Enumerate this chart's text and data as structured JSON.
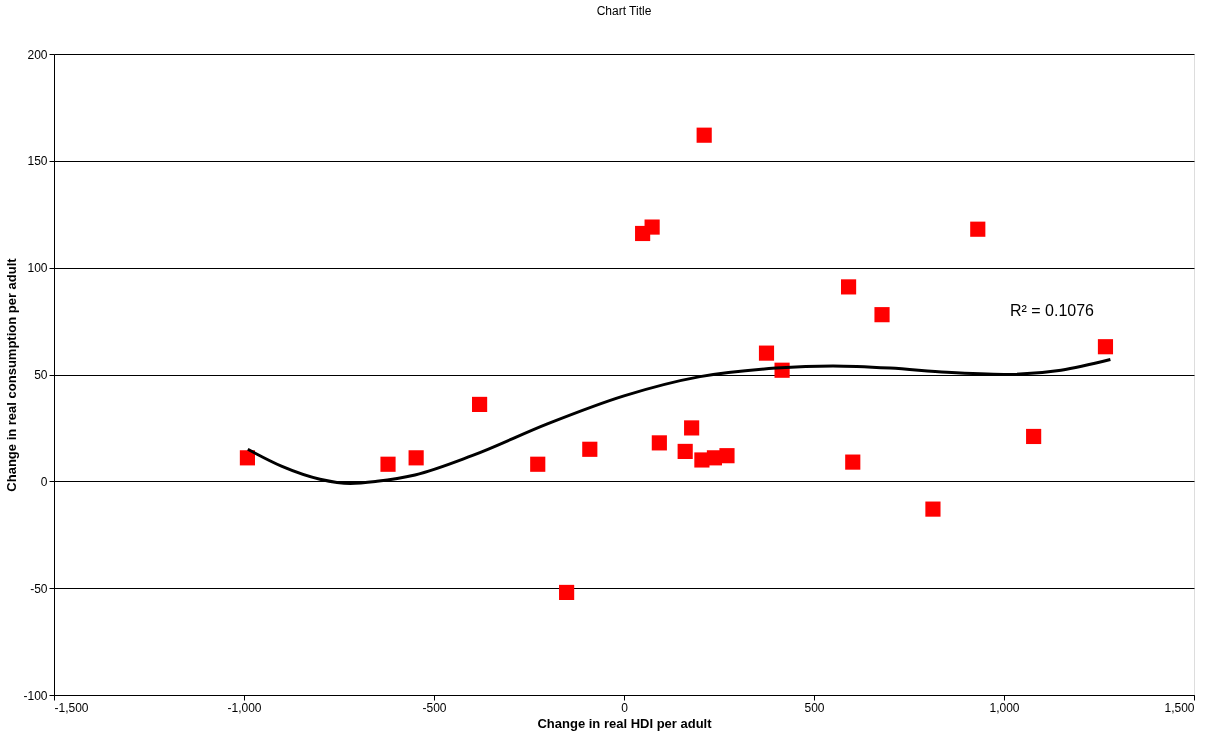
{
  "chart_data": {
    "type": "scatter",
    "title": "Chart Title",
    "xlabel": "Change in real HDI per adult",
    "ylabel": "Change in real consumption per adult",
    "x": [
      -991,
      -621,
      -547,
      -380,
      -227,
      -151,
      -90,
      49,
      74,
      93,
      211,
      178,
      161,
      205,
      238,
      271,
      375,
      416,
      591,
      602,
      679,
      813,
      931,
      1078,
      1267
    ],
    "series": [
      {
        "color": "#ff0000",
        "marker": "square",
        "values": [
          11,
          8,
          11,
          36,
          8,
          -52,
          15,
          116,
          119,
          18,
          162,
          25,
          14,
          10,
          11,
          12,
          60,
          52,
          91,
          9,
          78,
          -13,
          118,
          21,
          63
        ]
      },
      {
        "type": "line",
        "line_style": "solid",
        "color": "#000000",
        "x": [
          -990,
          -900,
          -800,
          -720,
          -650,
          -550,
          -400,
          -200,
          0,
          200,
          400,
          550,
          700,
          850,
          1000,
          1150,
          1280
        ],
        "values": [
          15,
          7,
          1,
          -1,
          0,
          3,
          12,
          27,
          40,
          49,
          53,
          54,
          53,
          51,
          50,
          52,
          57
        ]
      }
    ],
    "annotations": [
      "R² = 0.1076"
    ],
    "xlim": [
      -1500,
      1500
    ],
    "xticks": [
      {
        "value": -1500,
        "label": "-1,500"
      },
      {
        "value": -1000,
        "label": "-1,000"
      },
      -500,
      0,
      500,
      {
        "value": 1000,
        "label": "1,000"
      },
      {
        "value": 1500,
        "label": "1,500"
      }
    ],
    "ylim": [
      -100,
      200
    ],
    "yticks": [
      -100,
      -50,
      0,
      50,
      100,
      150,
      200
    ],
    "grid": "y"
  }
}
